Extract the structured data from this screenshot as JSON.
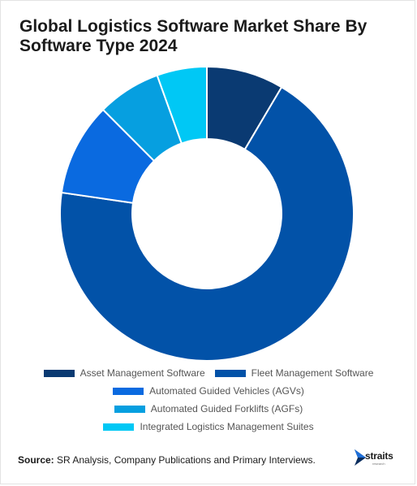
{
  "title": "Global Logistics Software Market Share By Software Type 2024",
  "chart_data": {
    "type": "pie",
    "variant": "donut",
    "title": "Global Logistics Software Market Share By Software Type 2024",
    "categories": [
      "Asset Management Software",
      "Fleet Management Software",
      "Automated Guided Vehicles (AGVs)",
      "Automated Guided Forklifts (AGFs)",
      "Integrated Logistics Management Suites"
    ],
    "values": [
      8.5,
      68.8,
      10.2,
      7.0,
      5.5
    ],
    "unit": "%",
    "colors": [
      "#0a3a72",
      "#0252a8",
      "#0a6ae0",
      "#069fe0",
      "#00c8f5"
    ],
    "legend_position": "bottom",
    "start_angle_deg": 0,
    "direction": "clockwise"
  },
  "legend_rows": [
    [
      0,
      1
    ],
    [
      2
    ],
    [
      3
    ],
    [
      4
    ]
  ],
  "source": {
    "label": "Source:",
    "text": " SR Analysis, Company Publications and Primary Interviews."
  },
  "logo": {
    "word": "straits",
    "sub": "research"
  }
}
